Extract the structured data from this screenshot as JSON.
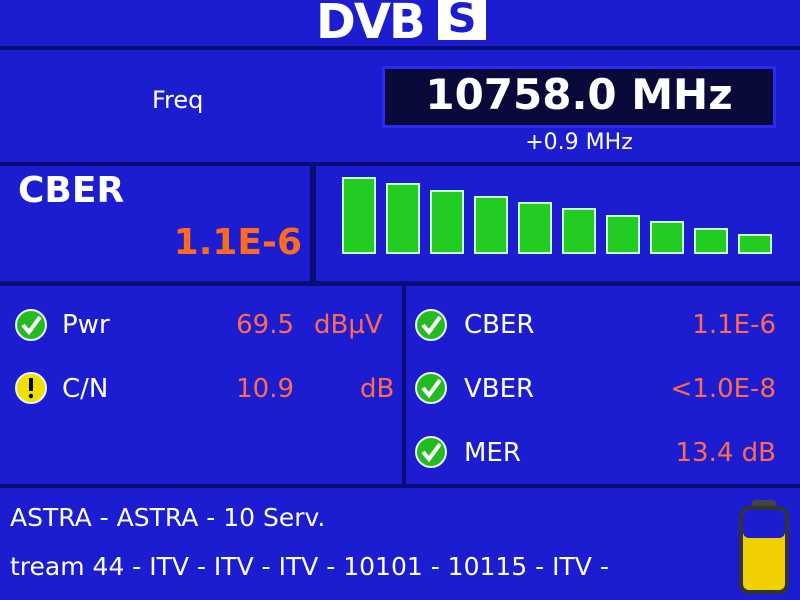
{
  "header": {
    "logo": "DVB",
    "logo_badge": "S"
  },
  "frequency": {
    "label": "Freq",
    "value": "10758.0 MHz",
    "offset": "+0.9 MHz"
  },
  "cber_panel": {
    "label": "CBER",
    "value": "1.1E-6"
  },
  "measurements": {
    "left": [
      {
        "label": "Pwr",
        "value": "69.5",
        "unit": "dBµV"
      },
      {
        "label": "C/N",
        "value": "10.9",
        "unit": "dB"
      }
    ],
    "right": [
      {
        "label": "CBER",
        "value": "1.1E-6"
      },
      {
        "label": "VBER",
        "value": "<1.0E-8"
      },
      {
        "label": "MER",
        "value": "13.4 dB"
      }
    ]
  },
  "footer": {
    "line1": "ASTRA - ASTRA - 10 Serv.",
    "line2": "tream 44 - ITV - ITV - ITV - 10101 - 10115 - ITV -"
  }
}
